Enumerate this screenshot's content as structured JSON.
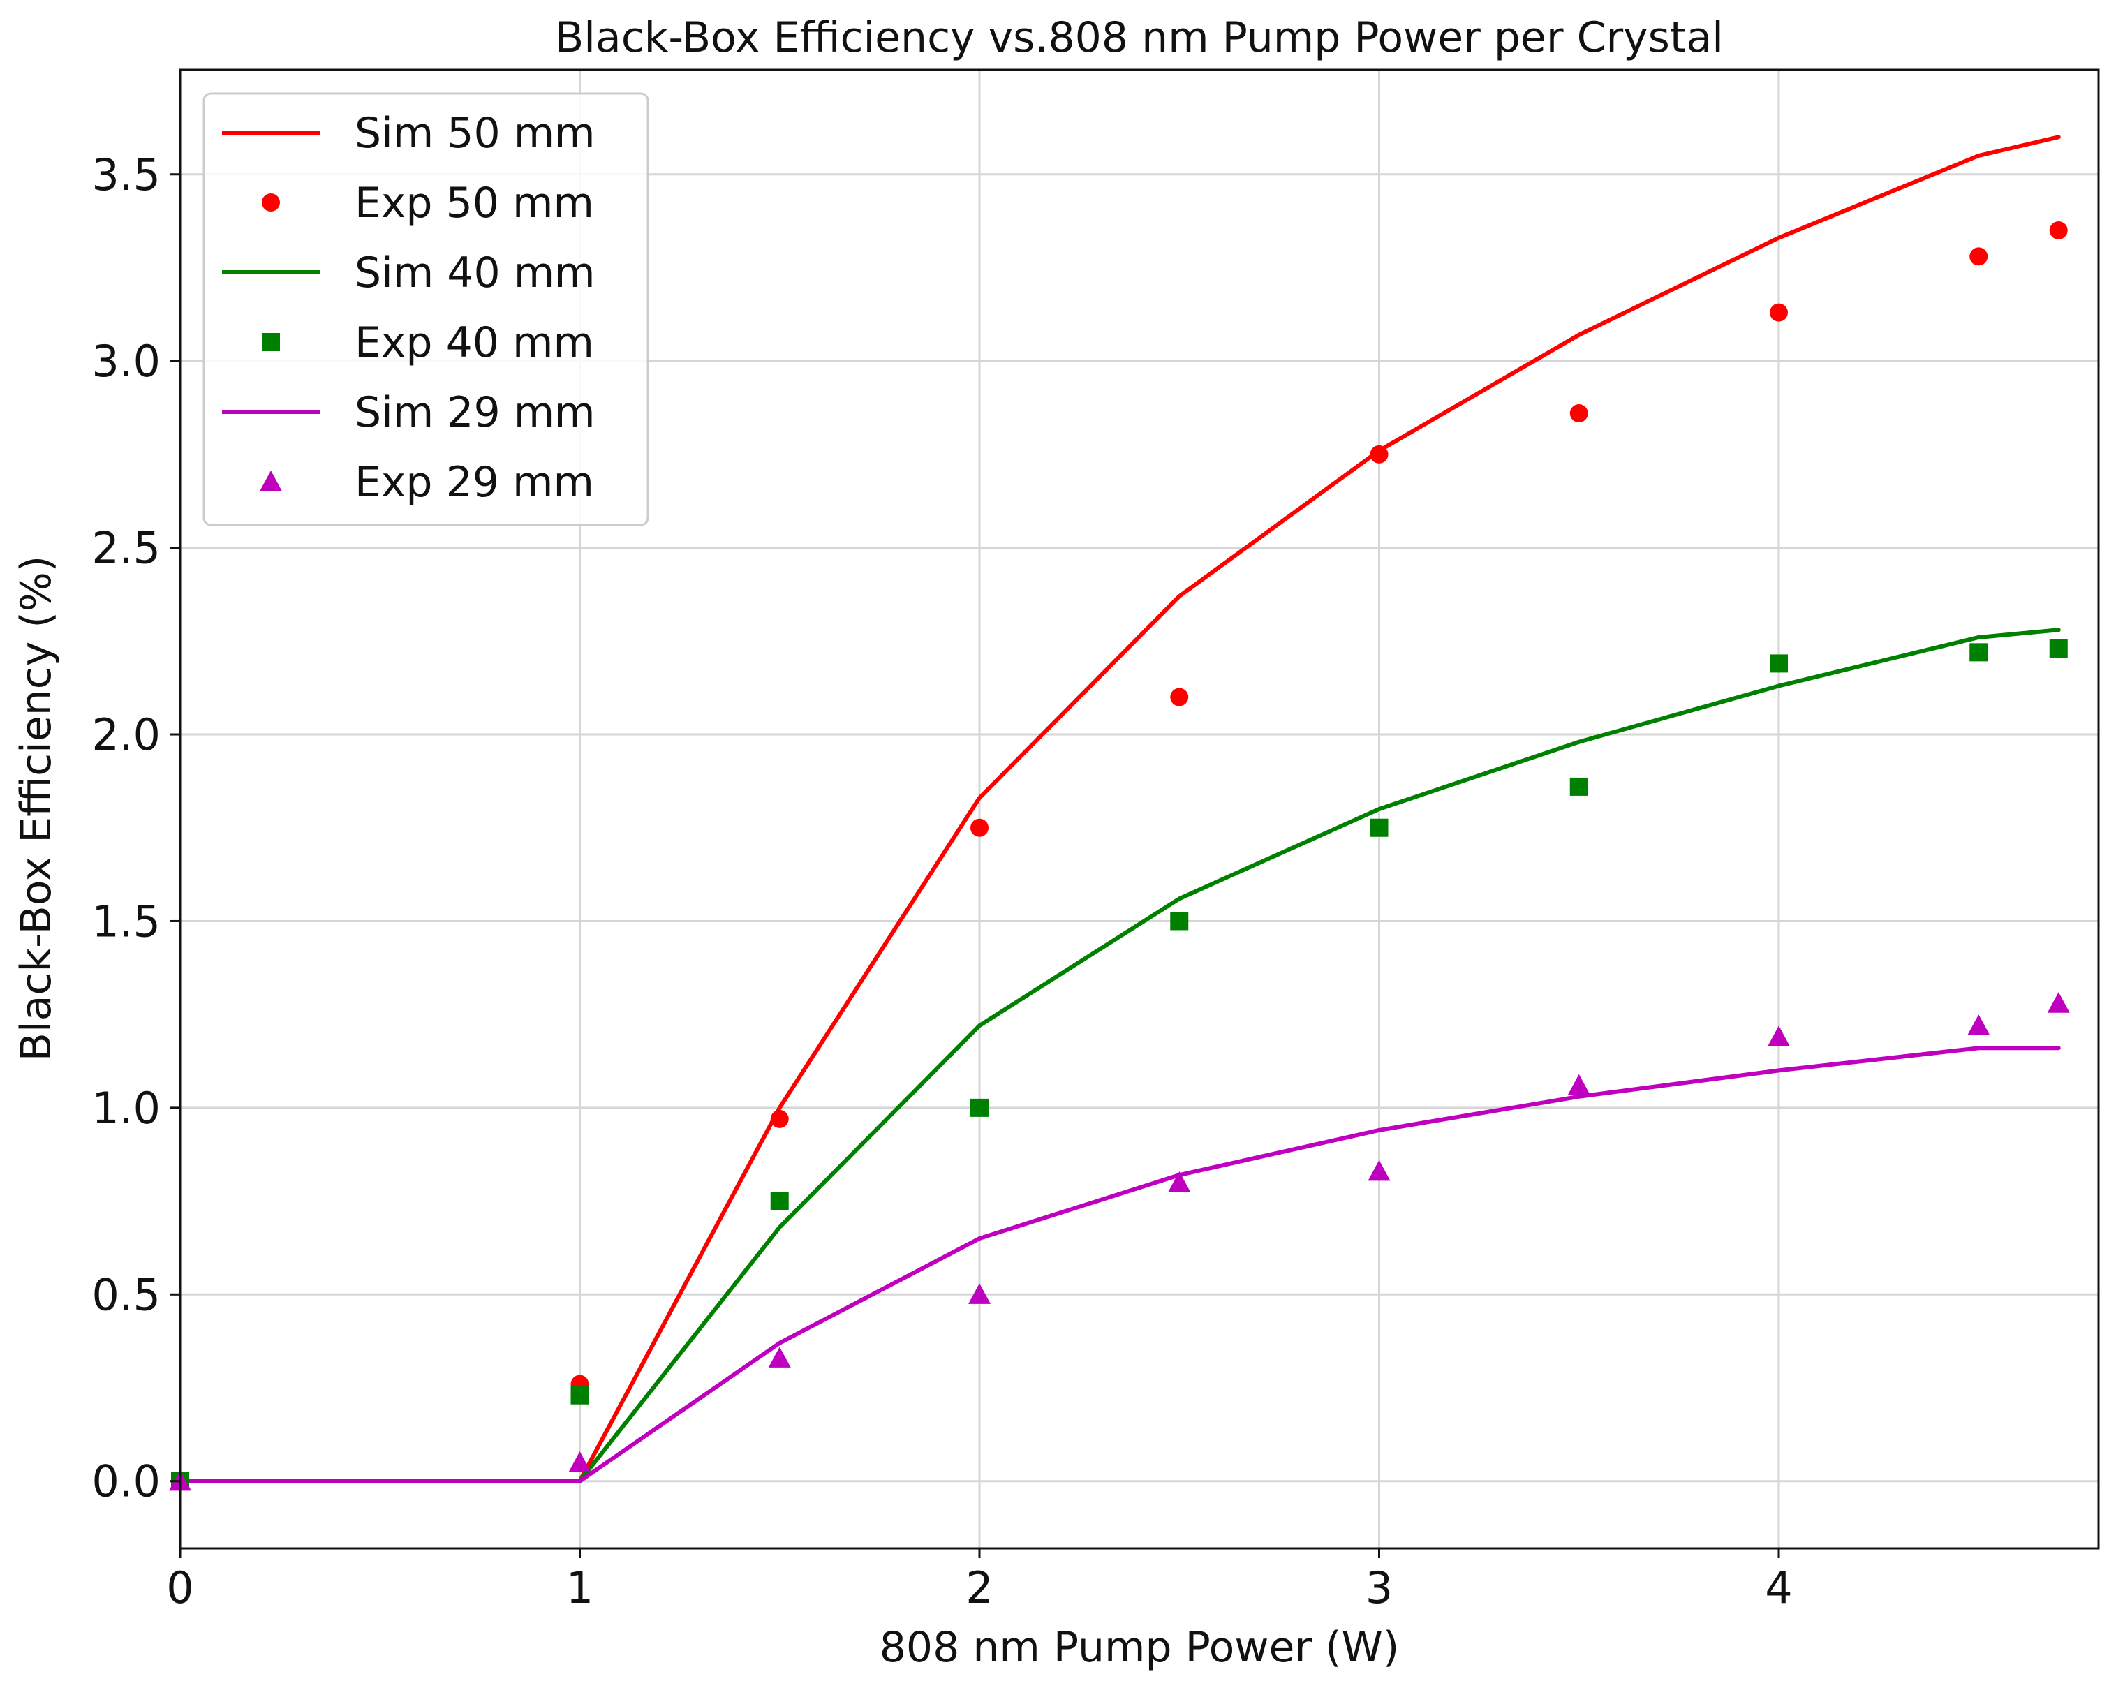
{
  "chart_data": {
    "type": "line",
    "title": "Black-Box Efficiency vs.808 nm Pump Power per Crystal",
    "xlabel": "808 nm Pump Power (W)",
    "ylabel": "Black-Box Efficiency (%)",
    "xlim": [
      0,
      4.8
    ],
    "ylim": [
      -0.18,
      3.78
    ],
    "grid": true,
    "legend_position": "upper-left",
    "x_ticks": [
      0,
      1,
      2,
      3,
      4
    ],
    "x_tick_labels": [
      "0",
      "1",
      "2",
      "3",
      "4"
    ],
    "y_ticks": [
      0.0,
      0.5,
      1.0,
      1.5,
      2.0,
      2.5,
      3.0,
      3.5
    ],
    "y_tick_labels": [
      "0.0",
      "0.5",
      "1.0",
      "1.5",
      "2.0",
      "2.5",
      "3.0",
      "3.5"
    ],
    "series": [
      {
        "name": "Sim 50 mm",
        "kind": "line",
        "color": "#ff0000",
        "x": [
          0,
          1,
          1.5,
          2,
          2.5,
          3,
          3.5,
          4,
          4.5,
          4.7
        ],
        "y": [
          0,
          0,
          1.0,
          1.83,
          2.37,
          2.76,
          3.07,
          3.33,
          3.55,
          3.6
        ]
      },
      {
        "name": "Exp 50 mm",
        "kind": "scatter",
        "marker": "circle",
        "color": "#ff0000",
        "x": [
          1,
          1.5,
          2,
          2.5,
          3,
          3.5,
          4,
          4.5,
          4.7
        ],
        "y": [
          0.26,
          0.97,
          1.75,
          2.1,
          2.75,
          2.86,
          3.13,
          3.28,
          3.35
        ]
      },
      {
        "name": "Sim 40 mm",
        "kind": "line",
        "color": "#008000",
        "x": [
          0,
          1,
          1.5,
          2,
          2.5,
          3,
          3.5,
          4,
          4.5,
          4.7
        ],
        "y": [
          0,
          0,
          0.68,
          1.22,
          1.56,
          1.8,
          1.98,
          2.13,
          2.26,
          2.28
        ]
      },
      {
        "name": "Exp 40 mm",
        "kind": "scatter",
        "marker": "square",
        "color": "#008000",
        "x": [
          0,
          1,
          1.5,
          2,
          2.5,
          3,
          3.5,
          4,
          4.5,
          4.7
        ],
        "y": [
          0,
          0.23,
          0.75,
          1.0,
          1.5,
          1.75,
          1.86,
          2.19,
          2.22,
          2.23
        ]
      },
      {
        "name": "Sim 29 mm",
        "kind": "line",
        "color": "#bf00bf",
        "x": [
          0,
          1,
          1.5,
          2,
          2.5,
          3,
          3.5,
          4,
          4.5,
          4.7
        ],
        "y": [
          0,
          0,
          0.37,
          0.65,
          0.82,
          0.94,
          1.03,
          1.1,
          1.16,
          1.16
        ]
      },
      {
        "name": "Exp 29 mm",
        "kind": "scatter",
        "marker": "triangle",
        "color": "#bf00bf",
        "x": [
          0,
          1,
          1.5,
          2,
          2.5,
          3,
          3.5,
          4,
          4.5,
          4.7
        ],
        "y": [
          0,
          0.05,
          0.33,
          0.5,
          0.8,
          0.83,
          1.06,
          1.19,
          1.22,
          1.28
        ]
      }
    ]
  }
}
